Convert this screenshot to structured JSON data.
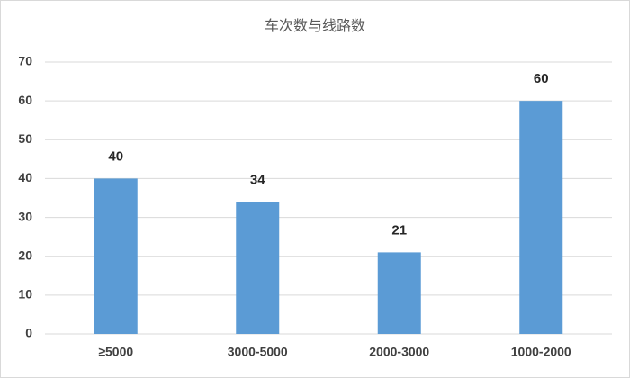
{
  "chart_data": {
    "type": "bar",
    "title": "车次数与线路数",
    "categories": [
      "≥5000",
      "3000-5000",
      "2000-3000",
      "1000-2000"
    ],
    "values": [
      40,
      34,
      21,
      60
    ],
    "color": "#5b9bd5",
    "ylim": [
      0,
      70
    ],
    "yticks": [
      0,
      10,
      20,
      30,
      40,
      50,
      60,
      70
    ],
    "grid": true
  }
}
